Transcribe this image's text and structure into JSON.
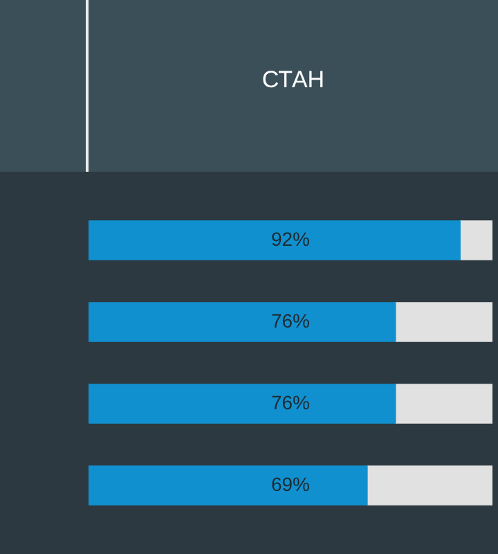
{
  "chart_data": {
    "type": "bar",
    "orientation": "horizontal",
    "title": "СТАН",
    "stacked": true,
    "categories": [
      null,
      null,
      null,
      null
    ],
    "series": [
      {
        "color": "#1190cf",
        "values": [
          92,
          76,
          76,
          69
        ],
        "value_labels": [
          "92%",
          "76%",
          "76%",
          "69%"
        ]
      },
      {
        "color": "#e1e1e1",
        "values": [
          8,
          24,
          24,
          31
        ]
      }
    ],
    "xlim": [
      0,
      100
    ],
    "tick_labels": false,
    "legend": false
  }
}
